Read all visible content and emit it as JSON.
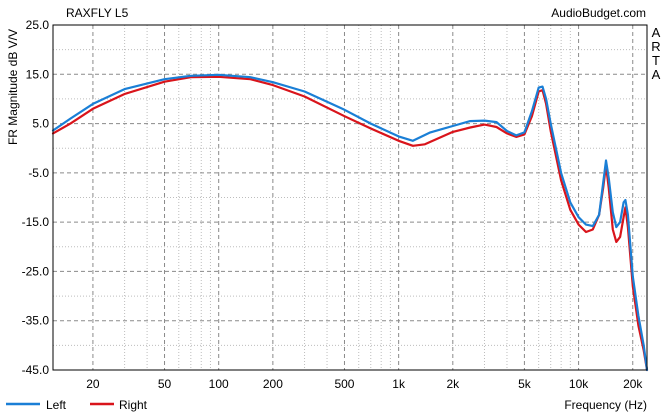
{
  "chart_data": {
    "type": "line",
    "title": "RAXFLY L5",
    "watermark": "AudioBudget.com",
    "side_label": [
      "A",
      "R",
      "T",
      "A"
    ],
    "xlabel": "Frequency (Hz)",
    "ylabel": "FR Magnitude dB V/V",
    "x_scale": "log",
    "xlim": [
      12,
      24000
    ],
    "ylim": [
      -45,
      25
    ],
    "x_ticks": [
      {
        "value": 20,
        "label": "20"
      },
      {
        "value": 50,
        "label": "50"
      },
      {
        "value": 100,
        "label": "100"
      },
      {
        "value": 200,
        "label": "200"
      },
      {
        "value": 500,
        "label": "500"
      },
      {
        "value": 1000,
        "label": "1k"
      },
      {
        "value": 2000,
        "label": "2k"
      },
      {
        "value": 5000,
        "label": "5k"
      },
      {
        "value": 10000,
        "label": "10k"
      },
      {
        "value": 20000,
        "label": "20k"
      }
    ],
    "y_ticks": [
      {
        "value": 25,
        "label": "25.0"
      },
      {
        "value": 15,
        "label": "15.0"
      },
      {
        "value": 5,
        "label": "5.0"
      },
      {
        "value": -5,
        "label": "-5.0"
      },
      {
        "value": -15,
        "label": "-15.0"
      },
      {
        "value": -25,
        "label": "-25.0"
      },
      {
        "value": -35,
        "label": "-35.0"
      },
      {
        "value": -45,
        "label": "-45.0"
      }
    ],
    "grid": true,
    "legend_position": "bottom-left",
    "series": [
      {
        "name": "Left",
        "color": "#1a7fd6",
        "points": [
          [
            12,
            3.6
          ],
          [
            15,
            6.0
          ],
          [
            20,
            9.0
          ],
          [
            30,
            12.0
          ],
          [
            50,
            14.0
          ],
          [
            70,
            14.7
          ],
          [
            100,
            14.9
          ],
          [
            150,
            14.4
          ],
          [
            200,
            13.4
          ],
          [
            300,
            11.5
          ],
          [
            500,
            7.8
          ],
          [
            700,
            5.0
          ],
          [
            1000,
            2.4
          ],
          [
            1200,
            1.5
          ],
          [
            1500,
            3.2
          ],
          [
            2000,
            4.5
          ],
          [
            2500,
            5.5
          ],
          [
            3000,
            5.6
          ],
          [
            3500,
            5.3
          ],
          [
            4000,
            3.5
          ],
          [
            4500,
            2.6
          ],
          [
            5000,
            3.2
          ],
          [
            5500,
            7.5
          ],
          [
            6000,
            12.3
          ],
          [
            6300,
            12.5
          ],
          [
            6600,
            10.0
          ],
          [
            7000,
            5.0
          ],
          [
            8000,
            -5.0
          ],
          [
            9000,
            -11.0
          ],
          [
            10000,
            -14.0
          ],
          [
            11000,
            -15.5
          ],
          [
            12000,
            -15.8
          ],
          [
            13000,
            -13.5
          ],
          [
            13700,
            -7.0
          ],
          [
            14200,
            -2.5
          ],
          [
            14700,
            -6.0
          ],
          [
            15500,
            -13.0
          ],
          [
            16200,
            -16.0
          ],
          [
            17000,
            -15.0
          ],
          [
            17800,
            -11.0
          ],
          [
            18200,
            -10.5
          ],
          [
            18800,
            -13.5
          ],
          [
            20000,
            -26.0
          ],
          [
            21500,
            -34.0
          ],
          [
            23000,
            -40.0
          ],
          [
            24000,
            -45.0
          ]
        ]
      },
      {
        "name": "Right",
        "color": "#d9141b",
        "points": [
          [
            12,
            3.0
          ],
          [
            15,
            5.0
          ],
          [
            20,
            8.0
          ],
          [
            30,
            11.0
          ],
          [
            50,
            13.5
          ],
          [
            70,
            14.4
          ],
          [
            100,
            14.5
          ],
          [
            150,
            14.0
          ],
          [
            200,
            12.8
          ],
          [
            300,
            10.5
          ],
          [
            500,
            6.5
          ],
          [
            700,
            4.0
          ],
          [
            1000,
            1.5
          ],
          [
            1200,
            0.5
          ],
          [
            1400,
            0.8
          ],
          [
            2000,
            3.3
          ],
          [
            2500,
            4.2
          ],
          [
            3000,
            4.8
          ],
          [
            3500,
            4.3
          ],
          [
            4000,
            3.0
          ],
          [
            4500,
            2.3
          ],
          [
            5000,
            2.8
          ],
          [
            5500,
            6.5
          ],
          [
            6000,
            11.5
          ],
          [
            6300,
            11.8
          ],
          [
            6600,
            9.0
          ],
          [
            7000,
            3.5
          ],
          [
            8000,
            -6.5
          ],
          [
            9000,
            -12.5
          ],
          [
            10000,
            -15.5
          ],
          [
            11000,
            -17.0
          ],
          [
            12000,
            -16.5
          ],
          [
            13000,
            -13.5
          ],
          [
            13700,
            -8.0
          ],
          [
            14200,
            -3.5
          ],
          [
            14700,
            -8.0
          ],
          [
            15500,
            -16.5
          ],
          [
            16200,
            -19.0
          ],
          [
            17000,
            -18.0
          ],
          [
            17800,
            -14.0
          ],
          [
            18200,
            -12.0
          ],
          [
            18800,
            -16.0
          ],
          [
            20000,
            -28.0
          ],
          [
            21500,
            -36.0
          ],
          [
            23000,
            -41.0
          ],
          [
            24000,
            -45.0
          ]
        ]
      }
    ]
  }
}
